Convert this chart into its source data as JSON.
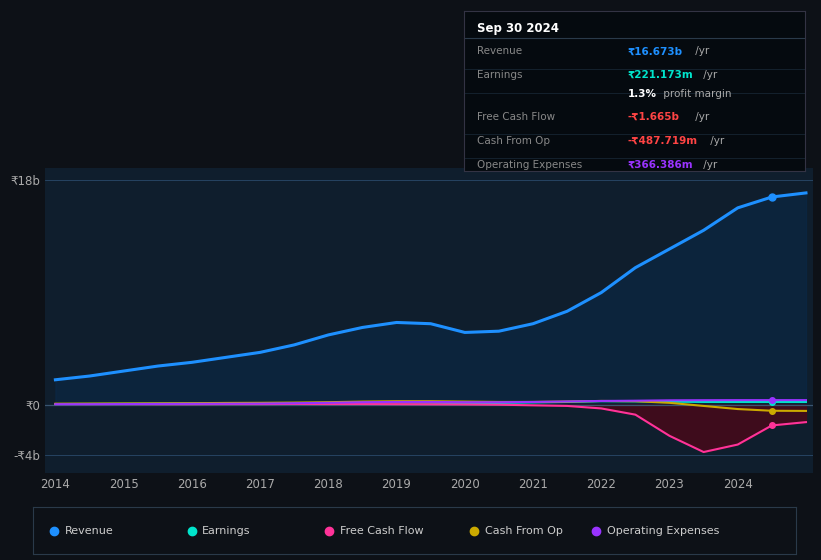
{
  "bg_color": "#0d1117",
  "plot_bg_color": "#0f1e2d",
  "grid_color": "#1e3a5f",
  "years": [
    2014,
    2014.5,
    2015,
    2015.5,
    2016,
    2016.5,
    2017,
    2017.5,
    2018,
    2018.5,
    2019,
    2019.5,
    2020,
    2020.5,
    2021,
    2021.5,
    2022,
    2022.5,
    2023,
    2023.5,
    2024,
    2024.5,
    2025.0
  ],
  "revenue": [
    2.0,
    2.3,
    2.7,
    3.1,
    3.4,
    3.8,
    4.2,
    4.8,
    5.6,
    6.2,
    6.6,
    6.5,
    5.8,
    5.9,
    6.5,
    7.5,
    9.0,
    11.0,
    12.5,
    14.0,
    15.8,
    16.673,
    17.0
  ],
  "earnings": [
    0.05,
    0.06,
    0.07,
    0.08,
    0.09,
    0.1,
    0.1,
    0.12,
    0.14,
    0.16,
    0.18,
    0.16,
    0.12,
    0.14,
    0.18,
    0.22,
    0.28,
    0.27,
    0.24,
    0.22,
    0.22,
    0.221,
    0.22
  ],
  "free_cash_flow": [
    0.05,
    0.05,
    0.05,
    0.04,
    0.04,
    0.05,
    0.05,
    0.06,
    0.05,
    0.05,
    0.04,
    0.03,
    0.02,
    0.0,
    -0.05,
    -0.1,
    -0.3,
    -0.8,
    -2.5,
    -3.8,
    -3.2,
    -1.665,
    -1.4
  ],
  "cash_from_op": [
    0.08,
    0.09,
    0.1,
    0.11,
    0.12,
    0.14,
    0.15,
    0.17,
    0.2,
    0.25,
    0.28,
    0.28,
    0.25,
    0.22,
    0.22,
    0.25,
    0.3,
    0.28,
    0.15,
    -0.1,
    -0.35,
    -0.487,
    -0.5
  ],
  "operating_expenses": [
    0.04,
    0.04,
    0.05,
    0.06,
    0.07,
    0.08,
    0.09,
    0.12,
    0.15,
    0.2,
    0.22,
    0.22,
    0.2,
    0.2,
    0.22,
    0.26,
    0.3,
    0.32,
    0.35,
    0.36,
    0.366,
    0.366,
    0.366
  ],
  "revenue_color": "#1e90ff",
  "earnings_color": "#00e5cc",
  "fcf_color": "#ff3399",
  "cash_op_color": "#ccaa00",
  "op_exp_color": "#9933ff",
  "revenue_fill": "#0a2a4a",
  "fcf_fill": "#4a0818",
  "ylim_top": 19,
  "ylim_bottom": -5.5,
  "info_box_title": "Sep 30 2024",
  "info_rows": [
    {
      "label": "Revenue",
      "value": "₹16.673b",
      "suffix": " /yr",
      "vcolor": "#1e90ff",
      "bold": true
    },
    {
      "label": "Earnings",
      "value": "₹221.173m",
      "suffix": " /yr",
      "vcolor": "#00e5cc",
      "bold": true
    },
    {
      "label": "",
      "value": "1.3%",
      "suffix": " profit margin",
      "vcolor": "#ffffff",
      "bold": true
    },
    {
      "label": "Free Cash Flow",
      "value": "-₹1.665b",
      "suffix": " /yr",
      "vcolor": "#ff4444",
      "bold": true
    },
    {
      "label": "Cash From Op",
      "value": "-₹487.719m",
      "suffix": " /yr",
      "vcolor": "#ff4444",
      "bold": true
    },
    {
      "label": "Operating Expenses",
      "value": "₹366.386m",
      "suffix": " /yr",
      "vcolor": "#9933ff",
      "bold": true
    }
  ],
  "legend_items": [
    {
      "label": "Revenue",
      "color": "#1e90ff"
    },
    {
      "label": "Earnings",
      "color": "#00e5cc"
    },
    {
      "label": "Free Cash Flow",
      "color": "#ff3399"
    },
    {
      "label": "Cash From Op",
      "color": "#ccaa00"
    },
    {
      "label": "Operating Expenses",
      "color": "#9933ff"
    }
  ],
  "xticks": [
    2014,
    2015,
    2016,
    2017,
    2018,
    2019,
    2020,
    2021,
    2022,
    2023,
    2024
  ],
  "ytick_vals": [
    18,
    0,
    -4
  ],
  "ytick_labels": [
    "₹18b",
    "₹0",
    "-₹4b"
  ]
}
